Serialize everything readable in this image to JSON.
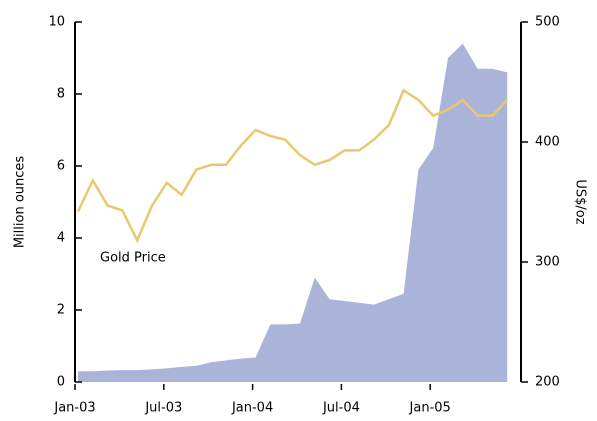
{
  "chart_data": {
    "type": "combo",
    "y_label": "Million ounces",
    "y2_label": "US$/oz",
    "x": [
      "2003-01",
      "2003-02",
      "2003-03",
      "2003-04",
      "2003-05",
      "2003-06",
      "2003-07",
      "2003-08",
      "2003-09",
      "2003-10",
      "2003-11",
      "2003-12",
      "2004-01",
      "2004-02",
      "2004-03",
      "2004-04",
      "2004-05",
      "2004-06",
      "2004-07",
      "2004-08",
      "2004-09",
      "2004-10",
      "2004-11",
      "2004-12",
      "2005-01",
      "2005-02",
      "2005-03",
      "2005-04",
      "2005-05",
      "2005-06"
    ],
    "xticks": [
      {
        "value": "2003-01",
        "label": "Jan-03"
      },
      {
        "value": "2003-07",
        "label": "Jul-03"
      },
      {
        "value": "2004-01",
        "label": "Jan-04"
      },
      {
        "value": "2004-07",
        "label": "Jul-04"
      },
      {
        "value": "2005-01",
        "label": "Jan-05"
      }
    ],
    "ylim": [
      0,
      10
    ],
    "yticks": [
      0,
      2,
      4,
      6,
      8,
      10
    ],
    "y2lim": [
      200,
      500
    ],
    "y2ticks": [
      200,
      300,
      400,
      500
    ],
    "series": [
      {
        "type": "area",
        "axis": "y",
        "color": "#aab4d9",
        "values": [
          0.3,
          0.3,
          0.32,
          0.33,
          0.33,
          0.35,
          0.38,
          0.42,
          0.45,
          0.55,
          0.6,
          0.65,
          0.68,
          1.6,
          1.6,
          1.62,
          2.9,
          2.3,
          2.25,
          2.2,
          2.15,
          2.3,
          2.45,
          5.9,
          6.5,
          9.0,
          9.4,
          8.7,
          8.7,
          8.6
        ]
      },
      {
        "type": "line",
        "axis": "y2",
        "name": "Gold Price",
        "color": "#e8c870",
        "values": [
          342,
          368,
          347,
          343,
          318,
          347,
          366,
          356,
          377,
          381,
          381,
          397,
          410,
          405,
          402,
          389,
          381,
          385,
          393,
          393,
          402,
          414,
          443,
          435,
          422,
          427,
          435,
          422,
          422,
          435
        ]
      }
    ]
  }
}
